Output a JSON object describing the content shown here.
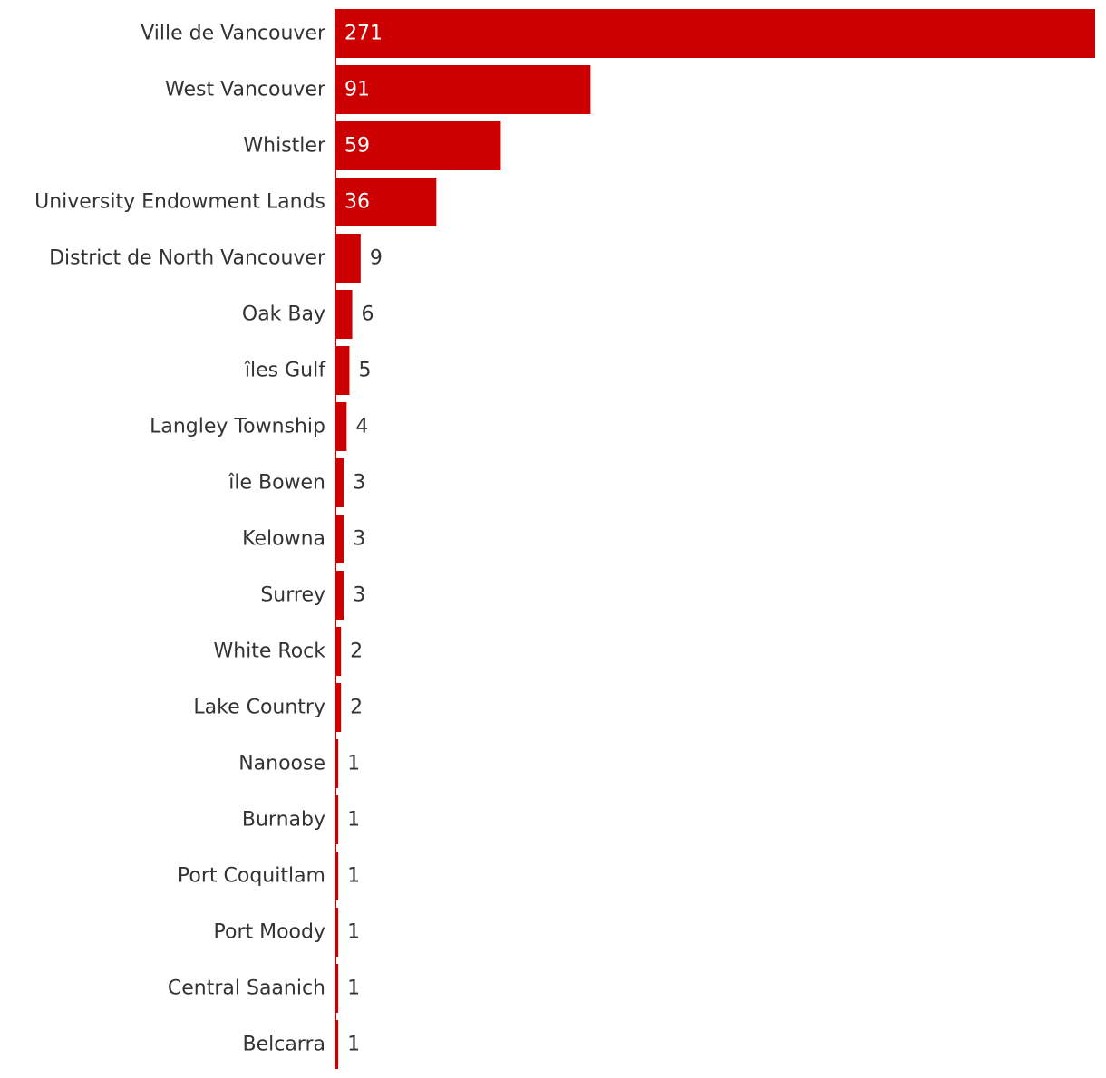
{
  "chart_data": {
    "type": "bar",
    "orientation": "horizontal",
    "categories": [
      "Ville de Vancouver",
      "West Vancouver",
      "Whistler",
      "University Endowment Lands",
      "District de North Vancouver",
      "Oak Bay",
      "îles Gulf",
      "Langley Township",
      "île Bowen",
      "Kelowna",
      "Surrey",
      "White Rock",
      "Lake Country",
      "Nanoose",
      "Burnaby",
      "Port Coquitlam",
      "Port Moody",
      "Central Saanich",
      "Belcarra"
    ],
    "values": [
      271,
      91,
      59,
      36,
      9,
      6,
      5,
      4,
      3,
      3,
      3,
      2,
      2,
      1,
      1,
      1,
      1,
      1,
      1
    ],
    "title": "",
    "xlabel": "",
    "ylabel": "",
    "xlim": [
      0,
      271
    ],
    "grid": false,
    "legend": "none",
    "data_labels": true,
    "colors": {
      "bar": "#cc0000",
      "label_inside": "#ffffff",
      "label_outside": "#333333",
      "axis_line": "#cc0000"
    }
  }
}
